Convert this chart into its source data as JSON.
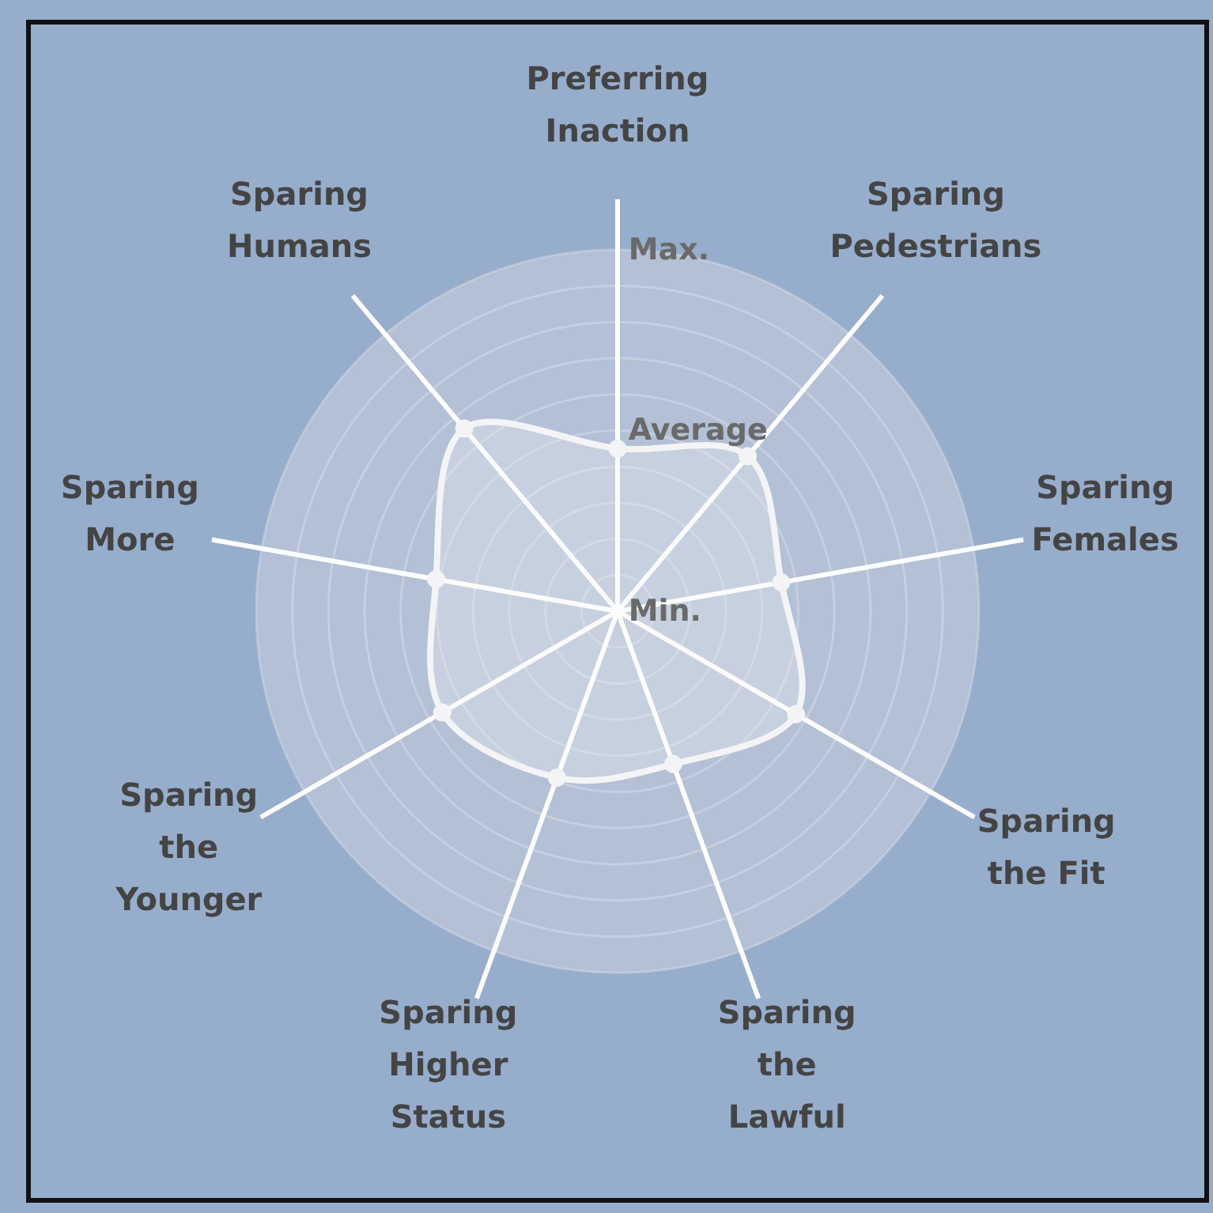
{
  "chart_data": {
    "type": "radar",
    "categories": [
      "Preferring Inaction",
      "Sparing Pedestrians",
      "Sparing Females",
      "Sparing the Fit",
      "Sparing the Lawful",
      "Sparing Higher Status",
      "Sparing the Younger",
      "Sparing More",
      "Sparing Humans"
    ],
    "series": [
      {
        "color": "#f4f4f6",
        "values": [
          0.45,
          0.56,
          0.46,
          0.57,
          0.45,
          0.49,
          0.56,
          0.51,
          0.66
        ]
      }
    ],
    "ylim": [
      0,
      1
    ],
    "yticks": [
      {
        "value": 0,
        "label": "Min."
      },
      {
        "value": 0.5,
        "label": "Average"
      },
      {
        "value": 1,
        "label": "Max."
      }
    ],
    "grid": true,
    "marker": "circle",
    "line_style": "solid"
  }
}
